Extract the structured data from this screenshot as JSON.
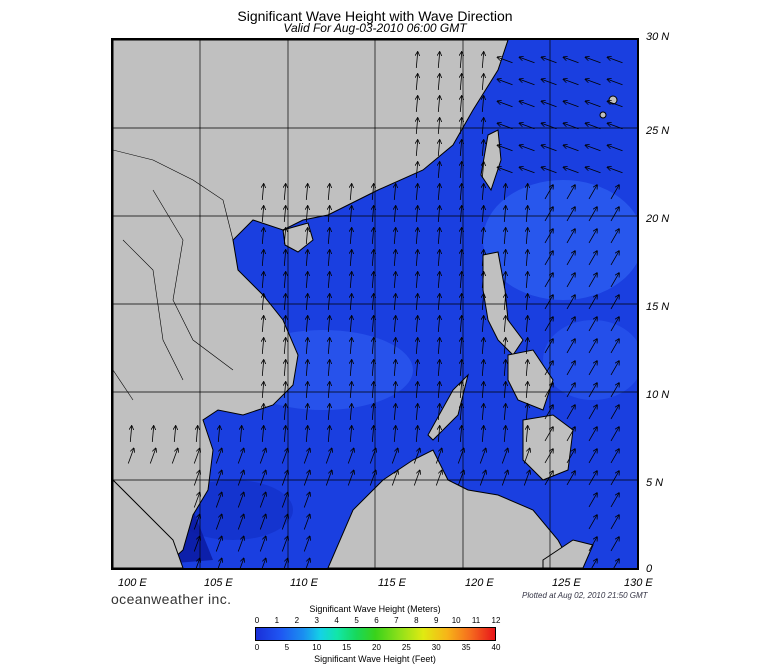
{
  "title": "Significant Wave Height with Wave Direction",
  "subtitle": "Valid For Aug-03-2010 06:00 GMT",
  "lat_labels": [
    "30 N",
    "25 N",
    "20 N",
    "15 N",
    "10 N",
    "5 N",
    "0"
  ],
  "lon_labels": [
    "100 E",
    "105 E",
    "110 E",
    "115 E",
    "120 E",
    "125 E",
    "130 E"
  ],
  "branding": "oceanweather inc.",
  "plotted_note": "Plotted at Aug 02, 2010 21:50 GMT",
  "colorbar": {
    "meters_title": "Significant Wave Height (Meters)",
    "feet_title": "Significant Wave Height (Feet)",
    "meters_ticks": [
      "0",
      "1",
      "2",
      "3",
      "4",
      "5",
      "6",
      "7",
      "8",
      "9",
      "10",
      "11",
      "12"
    ],
    "feet_ticks": [
      "0",
      "5",
      "10",
      "15",
      "20",
      "25",
      "30",
      "35",
      "40"
    ]
  },
  "colors": {
    "ocean": "#1a3fe0",
    "ocean_light": "#3a6af0",
    "ocean_dark": "#0f22b8",
    "land": "#c0c0c0",
    "gridlines": "#000000"
  },
  "map_extent": {
    "lon_min": 100,
    "lon_max": 130,
    "lat_min": 0,
    "lat_max": 30
  }
}
